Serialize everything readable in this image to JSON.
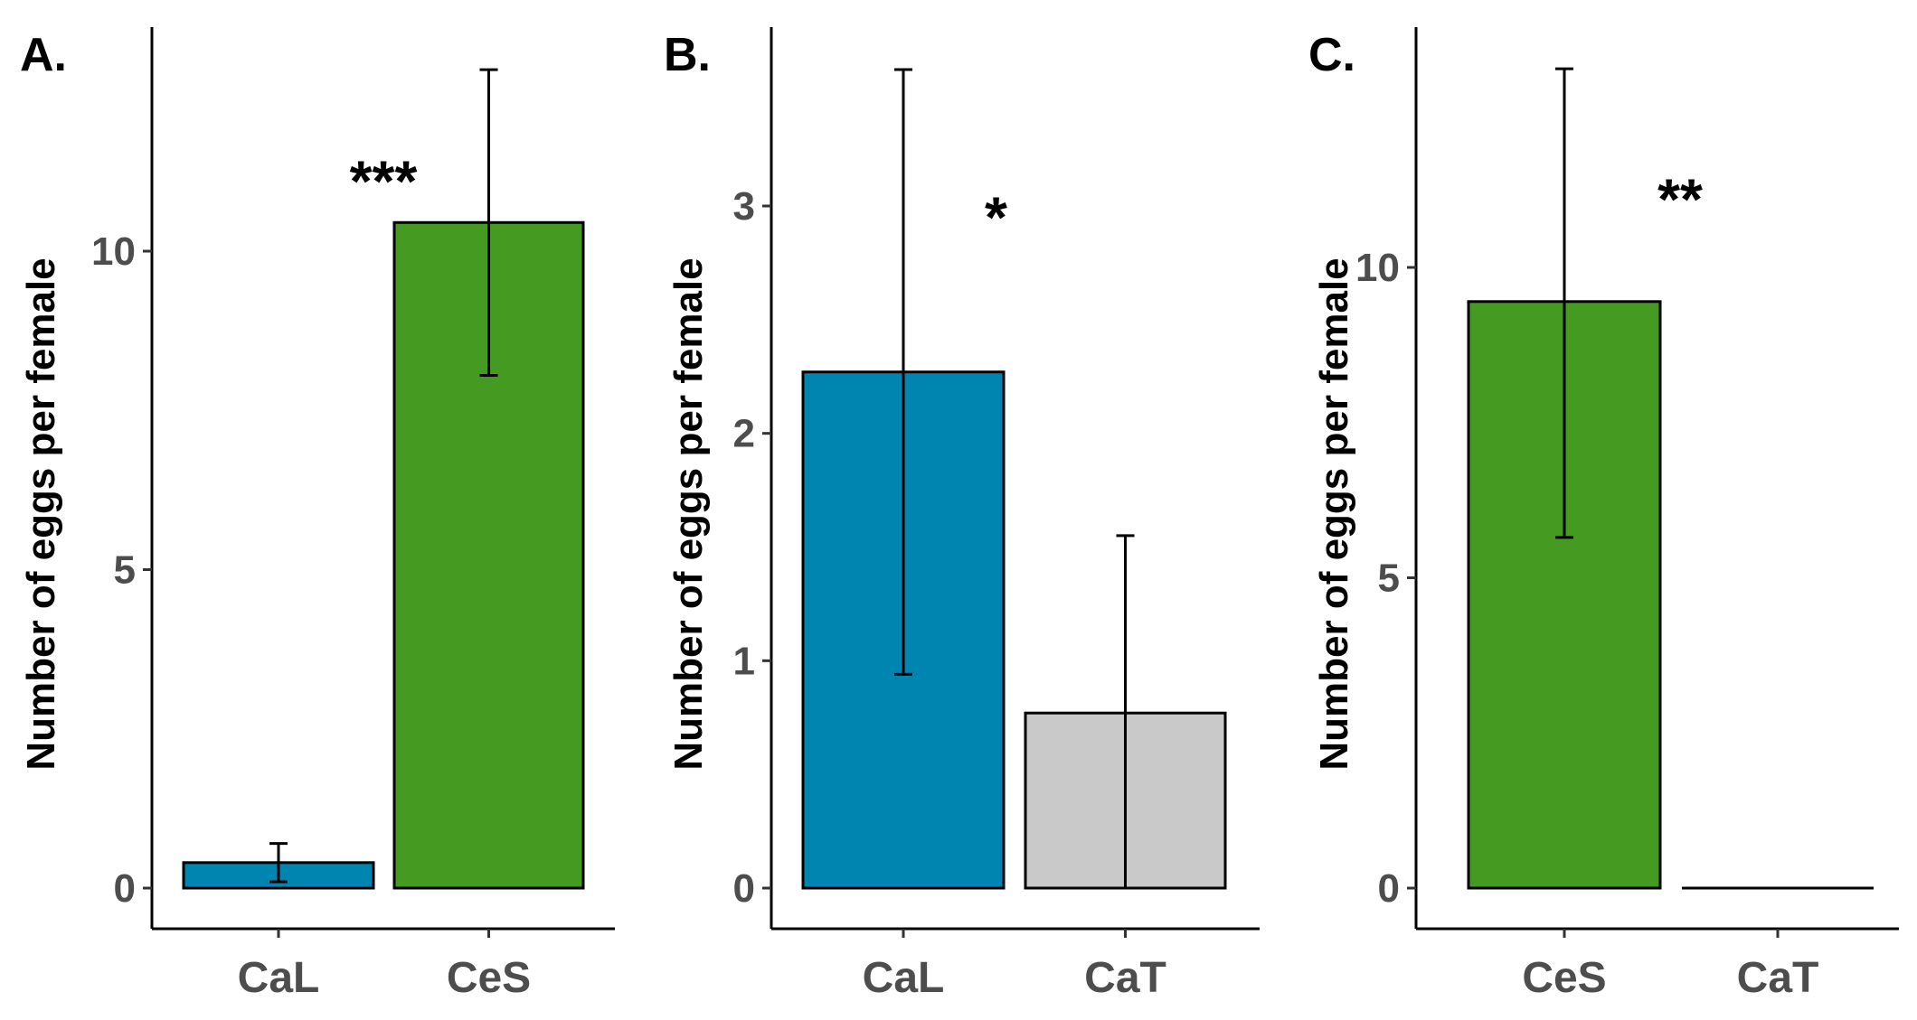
{
  "chart_data": [
    {
      "type": "bar",
      "panel": "A.",
      "ylabel": "Number of eggs per female",
      "categories": [
        "CaL",
        "CeS"
      ],
      "values": [
        0.4,
        10.45
      ],
      "error_low": [
        0.1,
        8.05
      ],
      "error_high": [
        0.7,
        12.85
      ],
      "colors": [
        "#0085B0",
        "#459A22"
      ],
      "yticks": [
        0,
        5,
        10
      ],
      "ylim": [
        -0.6,
        13.5
      ],
      "significance": "***",
      "significance_y": 11.1
    },
    {
      "type": "bar",
      "panel": "B.",
      "ylabel": "Number of eggs per female",
      "categories": [
        "CaL",
        "CaT"
      ],
      "values": [
        2.27,
        0.77
      ],
      "error_low": [
        0.94,
        0.0
      ],
      "error_high": [
        3.6,
        1.55
      ],
      "colors": [
        "#0085B0",
        "#C9C9C9"
      ],
      "yticks": [
        0,
        1,
        2,
        3
      ],
      "ylim": [
        -0.18,
        3.8
      ],
      "significance": "*",
      "significance_y": 2.95
    },
    {
      "type": "bar",
      "panel": "C.",
      "ylabel": "Number of eggs per female",
      "categories": [
        "CeS",
        "CaT"
      ],
      "values": [
        9.45,
        0.0
      ],
      "error_low": [
        5.65,
        0.0
      ],
      "error_high": [
        13.2,
        0.0
      ],
      "colors": [
        "#459A22",
        "#ffffff"
      ],
      "yticks": [
        0,
        5,
        10
      ],
      "ylim": [
        -0.65,
        14.2
      ],
      "significance": "**",
      "significance_y": 11.1
    }
  ]
}
